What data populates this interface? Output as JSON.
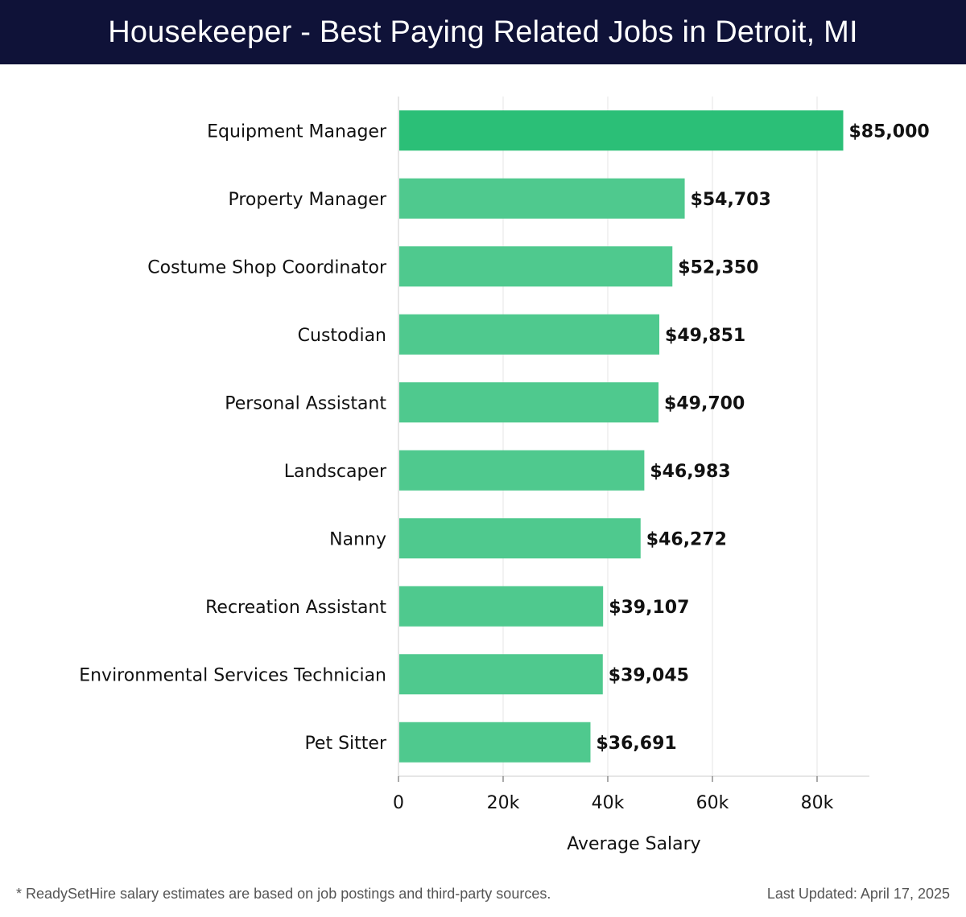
{
  "header": {
    "title": "Housekeeper - Best Paying Related Jobs in Detroit, MI"
  },
  "footer": {
    "note": "* ReadySetHire salary estimates are based on job postings and third-party sources.",
    "updated": "Last Updated: April 17, 2025"
  },
  "colors": {
    "header_bg": "#0f1238",
    "bar_top": "#2bbf77",
    "bar": "#4fc98e",
    "text": "#111111"
  },
  "chart_data": {
    "type": "bar",
    "orientation": "horizontal",
    "categories": [
      "Equipment Manager",
      "Property Manager",
      "Costume Shop Coordinator",
      "Custodian",
      "Personal Assistant",
      "Landscaper",
      "Nanny",
      "Recreation Assistant",
      "Environmental Services Technician",
      "Pet Sitter"
    ],
    "values": [
      85000,
      54703,
      52350,
      49851,
      49700,
      46983,
      46272,
      39107,
      39045,
      36691
    ],
    "value_labels": [
      "$85,000",
      "$54,703",
      "$52,350",
      "$49,851",
      "$49,700",
      "$46,983",
      "$46,272",
      "$39,107",
      "$39,045",
      "$36,691"
    ],
    "xlabel": "Average Salary",
    "ylabel": "",
    "xlim": [
      0,
      90000
    ],
    "xticks": [
      0,
      20000,
      40000,
      60000,
      80000
    ],
    "xtick_labels": [
      "0",
      "20k",
      "40k",
      "60k",
      "80k"
    ],
    "grid": "vertical"
  }
}
